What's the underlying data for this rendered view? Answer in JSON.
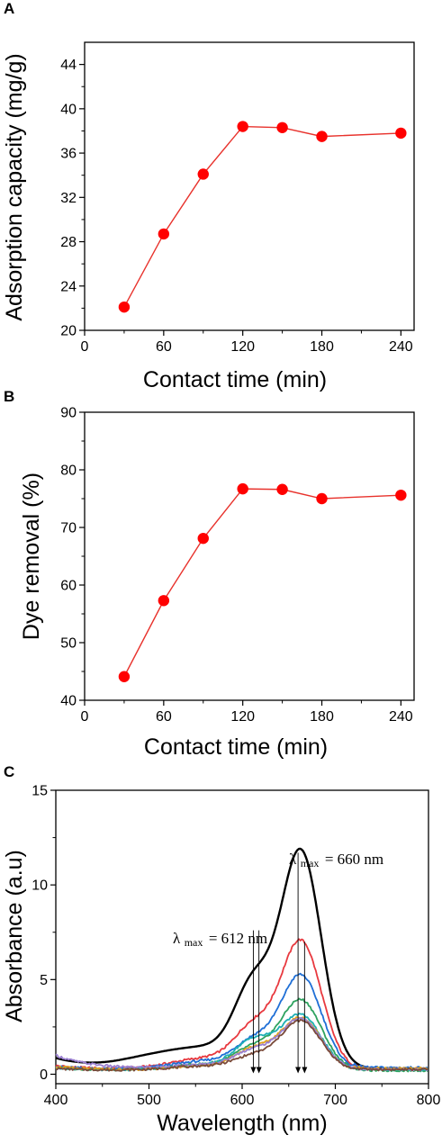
{
  "colors": {
    "marker": "#ff0000",
    "line": "#e8322c",
    "axis": "#000000",
    "spectrum_colors": [
      "#000000",
      "#e8393f",
      "#1f6fd6",
      "#2fa35f",
      "#1eb0b5",
      "#e0a31b",
      "#9a7fd0",
      "#7a4a3a"
    ]
  },
  "chart_data": [
    {
      "panel_label": "A",
      "type": "line",
      "xlabel": "Contact time (min)",
      "ylabel": "Adsorption capacity (mg/g)",
      "xlim": [
        0,
        250
      ],
      "ylim": [
        20,
        46
      ],
      "xticks": [
        0,
        60,
        120,
        180,
        240
      ],
      "yticks": [
        20,
        24,
        28,
        32,
        36,
        40,
        44
      ],
      "markers": "filled circle",
      "series": [
        {
          "x": [
            30,
            60,
            90,
            120,
            150,
            180,
            240
          ],
          "y": [
            22.1,
            28.7,
            34.1,
            38.4,
            38.3,
            37.5,
            37.8
          ]
        }
      ]
    },
    {
      "panel_label": "B",
      "type": "line",
      "xlabel": "Contact time (min)",
      "ylabel": "Dye removal  (%)",
      "xlim": [
        0,
        250
      ],
      "ylim": [
        40,
        90
      ],
      "xticks": [
        0,
        60,
        120,
        180,
        240
      ],
      "yticks": [
        40,
        50,
        60,
        70,
        80,
        90
      ],
      "markers": "filled circle",
      "series": [
        {
          "x": [
            30,
            60,
            90,
            120,
            150,
            180,
            240
          ],
          "y": [
            44.1,
            57.3,
            68.1,
            76.7,
            76.6,
            75.0,
            75.6
          ]
        }
      ]
    },
    {
      "panel_label": "C",
      "type": "line",
      "xlabel": "Wavelength (nm)",
      "ylabel": "Absorbance (a.u)",
      "xlim": [
        400,
        800
      ],
      "ylim": [
        -0.5,
        15
      ],
      "xticks": [
        400,
        500,
        600,
        700,
        800
      ],
      "yticks": [
        0,
        5,
        10,
        15
      ],
      "series": [
        {
          "peak1": 7.6,
          "peak2": 11.7,
          "base": 0.3,
          "edge": 0.55
        },
        {
          "peak1": 4.2,
          "peak2": 7.0,
          "base": 0.25,
          "edge": 0.2
        },
        {
          "peak1": 3.0,
          "peak2": 5.2,
          "base": 0.25,
          "edge": 0.15
        },
        {
          "peak1": 2.3,
          "peak2": 3.9,
          "base": 0.2,
          "edge": 0.15
        },
        {
          "peak1": 2.5,
          "peak2": 3.1,
          "base": 0.2,
          "edge": 0.15
        },
        {
          "peak1": 2.0,
          "peak2": 2.95,
          "base": 0.2,
          "edge": 0.2
        },
        {
          "peak1": 1.9,
          "peak2": 2.9,
          "base": 0.25,
          "edge": 0.75
        },
        {
          "peak1": 1.6,
          "peak2": 2.8,
          "base": 0.2,
          "edge": 0.1
        }
      ],
      "annotations": [
        {
          "symbol": "λ",
          "subscript": "max",
          "text": "= 612 nm",
          "x": 612
        },
        {
          "symbol": "λ",
          "subscript": "max",
          "text": "= 660 nm",
          "x": 660
        }
      ],
      "arrow_positions_nm": [
        612,
        618,
        660,
        667
      ]
    }
  ]
}
